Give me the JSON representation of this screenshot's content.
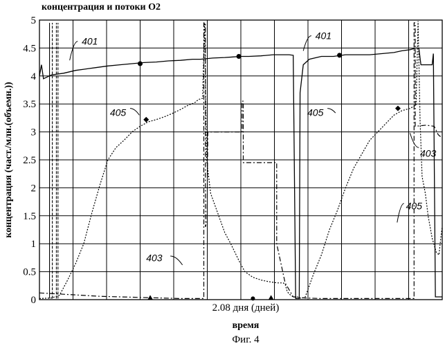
{
  "chart_data": {
    "type": "line",
    "title": "концентрация и потоки O2",
    "ylabel": "концентрация (част./млн.(объемн.))",
    "xlabel": "время",
    "x_tick_label": "2.08 дня (дней)",
    "caption": "Фиг. 4",
    "ylim": [
      0,
      5
    ],
    "xlim": [
      0,
      100
    ],
    "y_ticks": [
      "0",
      "0.5",
      "1",
      "1.5",
      "2",
      "2.5",
      "3",
      "3.5",
      "4",
      "4.5",
      "5"
    ],
    "grid": true,
    "series": [
      {
        "name": "401",
        "style": "solid",
        "points": [
          [
            0,
            4.0
          ],
          [
            0.5,
            4.2
          ],
          [
            1,
            3.95
          ],
          [
            3,
            4.02
          ],
          [
            6,
            4.05
          ],
          [
            9,
            4.1
          ],
          [
            11,
            4.12
          ],
          [
            14,
            4.15
          ],
          [
            17,
            4.18
          ],
          [
            20,
            4.2
          ],
          [
            23,
            4.22
          ],
          [
            26,
            4.24
          ],
          [
            29,
            4.25
          ],
          [
            32,
            4.27
          ],
          [
            35,
            4.28
          ],
          [
            38,
            4.3
          ],
          [
            40,
            4.3
          ],
          [
            43,
            4.32
          ],
          [
            46,
            4.33
          ],
          [
            48,
            4.34
          ],
          [
            50,
            4.35
          ],
          [
            52,
            4.35
          ],
          [
            55,
            4.36
          ],
          [
            58,
            4.38
          ],
          [
            60,
            4.38
          ],
          [
            62,
            4.38
          ],
          [
            63,
            4.37
          ],
          [
            63.6,
            0.02
          ],
          [
            64.5,
            0.02
          ],
          [
            64.7,
            3.7
          ],
          [
            65.5,
            4.2
          ],
          [
            67,
            4.3
          ],
          [
            70,
            4.35
          ],
          [
            73,
            4.35
          ],
          [
            76,
            4.38
          ],
          [
            79,
            4.38
          ],
          [
            82,
            4.38
          ],
          [
            85,
            4.4
          ],
          [
            88,
            4.42
          ],
          [
            90,
            4.45
          ],
          [
            92,
            4.47
          ],
          [
            93.5,
            4.5
          ],
          [
            94.2,
            4.5
          ],
          [
            94.7,
            4.2
          ],
          [
            96,
            4.2
          ],
          [
            97.5,
            4.2
          ],
          [
            97.8,
            4.4
          ],
          [
            98.3,
            0.05
          ],
          [
            100,
            0.05
          ]
        ]
      },
      {
        "name": "405",
        "style": "dashed",
        "points": [
          [
            0,
            0.02
          ],
          [
            3,
            0.03
          ],
          [
            5,
            0.08
          ],
          [
            7,
            0.35
          ],
          [
            9,
            0.65
          ],
          [
            11,
            1.0
          ],
          [
            13,
            1.55
          ],
          [
            15,
            2.05
          ],
          [
            17,
            2.5
          ],
          [
            19,
            2.72
          ],
          [
            21,
            2.85
          ],
          [
            23,
            3.0
          ],
          [
            25,
            3.1
          ],
          [
            27,
            3.18
          ],
          [
            29,
            3.22
          ],
          [
            31,
            3.27
          ],
          [
            33,
            3.33
          ],
          [
            35,
            3.4
          ],
          [
            37,
            3.48
          ],
          [
            38.5,
            3.52
          ],
          [
            39.5,
            3.58
          ],
          [
            40.5,
            3.6
          ],
          [
            41,
            4.95
          ],
          [
            41.5,
            2.5
          ],
          [
            42.5,
            1.9
          ],
          [
            44,
            1.6
          ],
          [
            46,
            1.2
          ],
          [
            47.5,
            1.0
          ],
          [
            48.5,
            0.85
          ],
          [
            49.5,
            0.7
          ],
          [
            51,
            0.5
          ],
          [
            53,
            0.4
          ],
          [
            55,
            0.35
          ],
          [
            57,
            0.32
          ],
          [
            59,
            0.3
          ],
          [
            60.5,
            0.3
          ],
          [
            61,
            0.28
          ],
          [
            61.5,
            0.15
          ],
          [
            62,
            0.1
          ],
          [
            63,
            0.05
          ],
          [
            64,
            0.05
          ],
          [
            65,
            0.02
          ],
          [
            66,
            0.05
          ],
          [
            68,
            0.45
          ],
          [
            70,
            0.8
          ],
          [
            72,
            1.25
          ],
          [
            74,
            1.6
          ],
          [
            76,
            2.0
          ],
          [
            78,
            2.35
          ],
          [
            80,
            2.6
          ],
          [
            82,
            2.85
          ],
          [
            84,
            3.0
          ],
          [
            86,
            3.15
          ],
          [
            88,
            3.3
          ],
          [
            90,
            3.38
          ],
          [
            92,
            3.42
          ],
          [
            93.5,
            3.48
          ],
          [
            94,
            4.98
          ],
          [
            94.5,
            3.2
          ],
          [
            95,
            2.2
          ],
          [
            95.8,
            1.9
          ],
          [
            96.5,
            1.5
          ],
          [
            97.5,
            1.1
          ],
          [
            98.5,
            0.85
          ],
          [
            99.2,
            0.8
          ],
          [
            99.8,
            1.2
          ],
          [
            100,
            1.3
          ]
        ]
      },
      {
        "name": "403",
        "style": "dashdot",
        "points": [
          [
            0,
            0.12
          ],
          [
            5,
            0.1
          ],
          [
            10,
            0.08
          ],
          [
            15,
            0.06
          ],
          [
            20,
            0.05
          ],
          [
            25,
            0.04
          ],
          [
            30,
            0.03
          ],
          [
            35,
            0.02
          ],
          [
            40,
            0.02
          ],
          [
            40.8,
            0.02
          ],
          [
            40.8,
            4.95
          ],
          [
            41.2,
            4.95
          ],
          [
            41.2,
            1.3
          ],
          [
            41.6,
            1.4
          ],
          [
            41.8,
            3.0
          ],
          [
            46,
            3.0
          ],
          [
            49,
            3.0
          ],
          [
            50.3,
            3.0
          ],
          [
            50.3,
            3.55
          ],
          [
            50.6,
            3.55
          ],
          [
            50.6,
            2.45
          ],
          [
            53,
            2.45
          ],
          [
            56,
            2.45
          ],
          [
            58.9,
            2.45
          ],
          [
            58.9,
            1.0
          ],
          [
            61,
            0.3
          ],
          [
            63,
            0.05
          ],
          [
            66,
            0.03
          ],
          [
            70,
            0.02
          ],
          [
            75,
            0.02
          ],
          [
            80,
            0.02
          ],
          [
            85,
            0.02
          ],
          [
            90,
            0.02
          ],
          [
            93,
            0.02
          ],
          [
            93,
            4.95
          ],
          [
            93.3,
            4.95
          ],
          [
            93.3,
            3.1
          ],
          [
            96,
            3.12
          ],
          [
            98,
            3.1
          ],
          [
            99,
            2.95
          ],
          [
            99.5,
            2.92
          ],
          [
            100,
            2.92
          ]
        ]
      }
    ],
    "extra_spikes_note": "",
    "series_labels": [
      "401",
      "401",
      "405",
      "405",
      "405",
      "403",
      "403"
    ]
  }
}
